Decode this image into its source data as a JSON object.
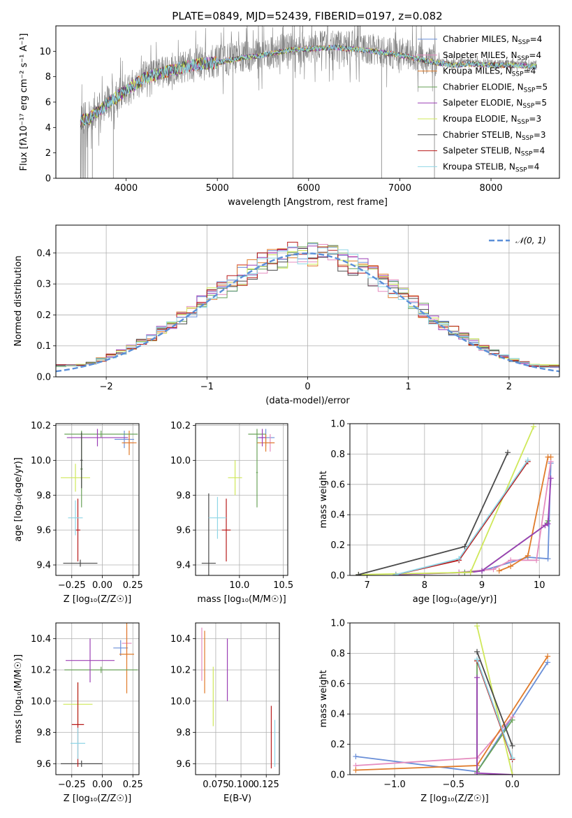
{
  "figure_title": "PLATE=0849, MJD=52439, FIBERID=0197, z=0.082",
  "palette": {
    "chabrier_miles": "#6a8fd8",
    "salpeter_miles": "#e58cbf",
    "kroupa_miles": "#e07b2a",
    "chabrier_elodie": "#6aa35a",
    "salpeter_elodie": "#9b3fb5",
    "kroupa_elodie": "#cfe85a",
    "chabrier_stelib": "#4a4a4a",
    "salpeter_stelib": "#b81a1a",
    "kroupa_stelib": "#8fd6e6",
    "gaussian": "#5b8fd8",
    "grid": "#b0b0b0"
  },
  "chart_data": [
    {
      "id": "spectrum",
      "type": "line",
      "xlabel": "wavelength [Angstrom, rest frame]",
      "ylabel": "Flux [fλ10⁻¹⁷ erg cm⁻² s⁻¹ A⁻¹]",
      "xlim": [
        3230,
        8750
      ],
      "ylim": [
        0,
        12
      ],
      "xticks": [
        4000,
        5000,
        6000,
        7000,
        8000
      ],
      "yticks": [
        0,
        2,
        4,
        6,
        8,
        10
      ],
      "grid": false,
      "legend_placement": "right",
      "observed_trend": {
        "x": [
          3500,
          3600,
          3800,
          4000,
          4200,
          4500,
          4800,
          5000,
          5200,
          5500,
          5800,
          6000,
          6300,
          6600,
          6800,
          7000,
          7200,
          7400,
          7600,
          7800,
          8000,
          8200,
          8500
        ],
        "y": [
          4.6,
          4.8,
          6.0,
          7.0,
          8.0,
          8.6,
          9.1,
          9.2,
          9.5,
          9.8,
          10.2,
          10.3,
          10.4,
          10.2,
          10.0,
          9.8,
          9.5,
          9.2,
          9.0,
          9.1,
          9.0,
          9.0,
          8.9
        ]
      },
      "legend": [
        {
          "label": "Chabrier MILES, N",
          "sub": "SSP",
          "suffix": "=4",
          "color": "#6a8fd8"
        },
        {
          "label": "Salpeter MILES, N",
          "sub": "SSP",
          "suffix": "=4",
          "color": "#e58cbf"
        },
        {
          "label": "Kroupa MILES, N",
          "sub": "SSP",
          "suffix": "=4",
          "color": "#e07b2a"
        },
        {
          "label": "Chabrier ELODIE, N",
          "sub": "SSP",
          "suffix": "=5",
          "color": "#6aa35a"
        },
        {
          "label": "Salpeter ELODIE, N",
          "sub": "SSP",
          "suffix": "=5",
          "color": "#9b3fb5"
        },
        {
          "label": "Kroupa ELODIE, N",
          "sub": "SSP",
          "suffix": "=3",
          "color": "#cfe85a"
        },
        {
          "label": "Chabrier STELIB, N",
          "sub": "SSP",
          "suffix": "=3",
          "color": "#4a4a4a"
        },
        {
          "label": "Salpeter STELIB, N",
          "sub": "SSP",
          "suffix": "=4",
          "color": "#b81a1a"
        },
        {
          "label": "Kroupa STELIB, N",
          "sub": "SSP",
          "suffix": "=4",
          "color": "#8fd6e6"
        }
      ]
    },
    {
      "id": "residuals",
      "type": "line",
      "xlabel": "(data-model)/error",
      "ylabel": "Normed distribution",
      "xlim": [
        -2.5,
        2.5
      ],
      "ylim": [
        0,
        0.49
      ],
      "xticks": [
        -2,
        -1,
        0,
        1,
        2
      ],
      "yticks": [
        0.0,
        0.1,
        0.2,
        0.3,
        0.4
      ],
      "grid": true,
      "legend_placement": "top-right",
      "legend": [
        {
          "label": "𝒩(0, 1)",
          "color": "#5b8fd8"
        }
      ],
      "bin_width": 0.1
    },
    {
      "id": "age_vs_Z",
      "type": "scatter",
      "xlabel": "Z [log₁₀(Z/Z☉)]",
      "ylabel": "age  [log₁₀(age/yr)]",
      "xlim": [
        -0.38,
        0.3
      ],
      "ylim": [
        9.34,
        10.21
      ],
      "xticks": [
        -0.25,
        0.0,
        0.25
      ],
      "xticklabels": [
        "−0.25",
        "0.00",
        "0.25"
      ],
      "yticks": [
        9.4,
        9.6,
        9.8,
        10.0,
        10.2
      ],
      "grid": true,
      "points": [
        {
          "model": "chabrier_miles",
          "x": 0.18,
          "y": 10.12,
          "xerr": 0.08,
          "yerr": 0.05
        },
        {
          "model": "salpeter_miles",
          "x": 0.22,
          "y": 10.1,
          "xerr": 0.04,
          "yerr": 0.04
        },
        {
          "model": "kroupa_miles",
          "x": 0.22,
          "y": 10.1,
          "xerr": 0.06,
          "yerr": 0.07
        },
        {
          "model": "chabrier_elodie",
          "x": -0.01,
          "y": 10.15,
          "xerr": 0.3,
          "yerr": 0.02
        },
        {
          "model": "salpeter_elodie",
          "x": -0.04,
          "y": 10.13,
          "xerr": 0.25,
          "yerr": 0.05
        },
        {
          "model": "kroupa_elodie",
          "x": -0.22,
          "y": 9.9,
          "xerr": 0.12,
          "yerr": 0.08
        },
        {
          "model": "chabrier_stelib",
          "x": -0.18,
          "y": 9.41,
          "xerr": 0.14,
          "yerr": 0.02
        },
        {
          "model": "salpeter_stelib",
          "x": -0.2,
          "y": 9.6,
          "xerr": 0.02,
          "yerr": 0.18
        },
        {
          "model": "kroupa_stelib",
          "x": -0.22,
          "y": 9.67,
          "xerr": 0.06,
          "yerr": 0.1
        },
        {
          "model": "chabrier_elodie",
          "x": -0.17,
          "y": 9.95,
          "xerr": 0.01,
          "yerr": 0.22
        },
        {
          "model": "chabrier_stelib",
          "x": -0.17,
          "y": 10.0,
          "xerr": 0.01,
          "yerr": 0.16
        }
      ]
    },
    {
      "id": "age_vs_mass",
      "type": "scatter",
      "xlabel": "mass [log₁₀(M/M☉)]",
      "ylabel": "",
      "xlim": [
        9.5,
        10.55
      ],
      "ylim": [
        9.34,
        10.21
      ],
      "xticks": [
        10.0,
        10.5
      ],
      "yticks": [
        9.4,
        9.6,
        9.8,
        10.0,
        10.2
      ],
      "grid": true,
      "points": [
        {
          "model": "chabrier_miles",
          "x": 10.3,
          "y": 10.13,
          "xerr": 0.1,
          "yerr": 0.05
        },
        {
          "model": "salpeter_miles",
          "x": 10.35,
          "y": 10.1,
          "xerr": 0.05,
          "yerr": 0.05
        },
        {
          "model": "kroupa_miles",
          "x": 10.3,
          "y": 10.1,
          "xerr": 0.1,
          "yerr": 0.05
        },
        {
          "model": "chabrier_elodie",
          "x": 10.2,
          "y": 10.15,
          "xerr": 0.1,
          "yerr": 0.03
        },
        {
          "model": "salpeter_elodie",
          "x": 10.26,
          "y": 10.13,
          "xerr": 0.04,
          "yerr": 0.05
        },
        {
          "model": "kroupa_elodie",
          "x": 9.95,
          "y": 9.9,
          "xerr": 0.08,
          "yerr": 0.1
        },
        {
          "model": "chabrier_stelib",
          "x": 9.65,
          "y": 9.41,
          "xerr": 0.08,
          "yerr": 0.4
        },
        {
          "model": "salpeter_stelib",
          "x": 9.85,
          "y": 9.6,
          "xerr": 0.05,
          "yerr": 0.18
        },
        {
          "model": "kroupa_stelib",
          "x": 9.75,
          "y": 9.67,
          "xerr": 0.1,
          "yerr": 0.12
        },
        {
          "model": "chabrier_elodie",
          "x": 10.2,
          "y": 9.93,
          "xerr": 0.01,
          "yerr": 0.2
        }
      ]
    },
    {
      "id": "mass_weight_vs_age",
      "type": "line",
      "xlabel": "age  [log₁₀(age/yr)]",
      "ylabel": "mass weight",
      "xlim": [
        6.7,
        10.35
      ],
      "ylim": [
        0,
        1.0
      ],
      "xticks": [
        7,
        8,
        9,
        10
      ],
      "yticks": [
        0.0,
        0.2,
        0.4,
        0.6,
        0.8,
        1.0
      ],
      "grid": true,
      "series": [
        {
          "model": "chabrier_miles",
          "x": [
            8.6,
            9.0,
            9.8,
            10.15,
            10.2
          ],
          "y": [
            0.02,
            0.03,
            0.12,
            0.11,
            0.74
          ]
        },
        {
          "model": "salpeter_miles",
          "x": [
            8.6,
            9.2,
            9.5,
            9.95,
            10.2
          ],
          "y": [
            0.02,
            0.04,
            0.1,
            0.1,
            0.75
          ]
        },
        {
          "model": "kroupa_miles",
          "x": [
            9.3,
            9.5,
            9.8,
            10.15,
            10.2
          ],
          "y": [
            0.03,
            0.06,
            0.13,
            0.78,
            0.78
          ]
        },
        {
          "model": "chabrier_elodie",
          "x": [
            7.5,
            8.7,
            9.0,
            10.1,
            10.15
          ],
          "y": [
            0.005,
            0.02,
            0.03,
            0.33,
            0.36
          ]
        },
        {
          "model": "salpeter_elodie",
          "x": [
            7.5,
            8.8,
            9.0,
            10.1,
            10.15,
            10.2
          ],
          "y": [
            0.005,
            0.02,
            0.03,
            0.33,
            0.34,
            0.64
          ]
        },
        {
          "model": "kroupa_elodie",
          "x": [
            6.85,
            8.8,
            9.9
          ],
          "y": [
            0.005,
            0.02,
            0.98
          ]
        },
        {
          "model": "chabrier_stelib",
          "x": [
            6.85,
            8.7,
            9.45
          ],
          "y": [
            0.005,
            0.19,
            0.81
          ]
        },
        {
          "model": "salpeter_stelib",
          "x": [
            7.5,
            8.6,
            9.8
          ],
          "y": [
            0.005,
            0.1,
            0.75
          ]
        },
        {
          "model": "kroupa_stelib",
          "x": [
            7.5,
            8.6,
            9.8
          ],
          "y": [
            0.005,
            0.11,
            0.76
          ]
        }
      ]
    },
    {
      "id": "mass_vs_Z",
      "type": "scatter",
      "xlabel": "Z [log₁₀(Z/Z☉)]",
      "ylabel": "mass [log₁₀(M/M☉)]",
      "xlim": [
        -0.38,
        0.3
      ],
      "ylim": [
        9.53,
        10.5
      ],
      "xticks": [
        -0.25,
        0.0,
        0.25
      ],
      "xticklabels": [
        "−0.25",
        "0.00",
        "0.25"
      ],
      "yticks": [
        9.6,
        9.8,
        10.0,
        10.2,
        10.4
      ],
      "grid": true,
      "points": [
        {
          "model": "chabrier_miles",
          "x": 0.15,
          "y": 10.34,
          "xerr": 0.06,
          "yerr": 0.05
        },
        {
          "model": "salpeter_miles",
          "x": 0.2,
          "y": 10.37,
          "xerr": 0.04,
          "yerr": 0.1
        },
        {
          "model": "kroupa_miles",
          "x": 0.2,
          "y": 10.3,
          "xerr": 0.06,
          "yerr": 0.25
        },
        {
          "model": "chabrier_elodie",
          "x": -0.01,
          "y": 10.2,
          "xerr": 0.3,
          "yerr": 0.02
        },
        {
          "model": "salpeter_elodie",
          "x": -0.1,
          "y": 10.26,
          "xerr": 0.2,
          "yerr": 0.14
        },
        {
          "model": "kroupa_elodie",
          "x": -0.2,
          "y": 9.98,
          "xerr": 0.12,
          "yerr": 0.14
        },
        {
          "model": "chabrier_stelib",
          "x": -0.17,
          "y": 9.6,
          "xerr": 0.17,
          "yerr": 0.02
        },
        {
          "model": "salpeter_stelib",
          "x": -0.2,
          "y": 9.85,
          "xerr": 0.05,
          "yerr": 0.27
        },
        {
          "model": "kroupa_stelib",
          "x": -0.2,
          "y": 9.73,
          "xerr": 0.06,
          "yerr": 0.1
        }
      ]
    },
    {
      "id": "mass_vs_ebv",
      "type": "scatter",
      "xlabel": "E(B-V)",
      "ylabel": "",
      "xlim": [
        0.055,
        0.138
      ],
      "ylim": [
        9.53,
        10.5
      ],
      "xticks": [
        0.075,
        0.1,
        0.125
      ],
      "xticklabels": [
        "0.075",
        "0.100",
        "0.125"
      ],
      "yticks": [
        9.6,
        9.8,
        10.0,
        10.2,
        10.4
      ],
      "grid": true,
      "points": [
        {
          "model": "salpeter_miles",
          "x": 0.0612,
          "y": 10.3,
          "yerr": 0.17
        },
        {
          "model": "kroupa_miles",
          "x": 0.064,
          "y": 10.25,
          "yerr": 0.2
        },
        {
          "model": "kroupa_elodie",
          "x": 0.0725,
          "y": 10.03,
          "yerr": 0.19
        },
        {
          "model": "salpeter_elodie",
          "x": 0.0865,
          "y": 10.2,
          "yerr": 0.2
        },
        {
          "model": "salpeter_stelib",
          "x": 0.13,
          "y": 9.77,
          "yerr": 0.2
        },
        {
          "model": "kroupa_stelib",
          "x": 0.1335,
          "y": 9.73,
          "yerr": 0.15
        }
      ]
    },
    {
      "id": "mass_weight_vs_Z",
      "type": "line",
      "xlabel": "Z [log₁₀(Z/Z☉)]",
      "ylabel": "mass weight",
      "xlim": [
        -1.38,
        0.4
      ],
      "ylim": [
        0,
        1.0
      ],
      "xticks": [
        -1.0,
        -0.5,
        0.0
      ],
      "xticklabels": [
        "−1.0",
        "−0.5",
        "0.0"
      ],
      "yticks": [
        0.0,
        0.2,
        0.4,
        0.6,
        0.8,
        1.0
      ],
      "grid": true,
      "series": [
        {
          "model": "chabrier_miles",
          "x": [
            -1.33,
            -0.3,
            0.3
          ],
          "y": [
            0.12,
            0.02,
            0.74
          ]
        },
        {
          "model": "salpeter_miles",
          "x": [
            -1.33,
            -0.3,
            0.0
          ],
          "y": [
            0.06,
            0.11,
            0.38
          ]
        },
        {
          "model": "kroupa_miles",
          "x": [
            -1.33,
            -0.3,
            0.3
          ],
          "y": [
            0.03,
            0.06,
            0.78
          ]
        },
        {
          "model": "chabrier_elodie",
          "x": [
            -0.3,
            -0.3,
            0.0
          ],
          "y": [
            0.75,
            0.02,
            0.36
          ]
        },
        {
          "model": "salpeter_elodie",
          "x": [
            -0.3,
            -0.3,
            0.0
          ],
          "y": [
            0.64,
            0.01,
            0.0
          ]
        },
        {
          "model": "kroupa_elodie",
          "x": [
            -0.3,
            0.0
          ],
          "y": [
            0.98,
            0.0
          ]
        },
        {
          "model": "chabrier_stelib",
          "x": [
            -0.3,
            0.0
          ],
          "y": [
            0.81,
            0.19
          ]
        },
        {
          "model": "salpeter_stelib",
          "x": [
            -0.3,
            0.0
          ],
          "y": [
            0.75,
            0.1
          ]
        },
        {
          "model": "kroupa_stelib",
          "x": [
            -0.3,
            0.0
          ],
          "y": [
            0.76,
            0.11
          ]
        }
      ]
    }
  ]
}
